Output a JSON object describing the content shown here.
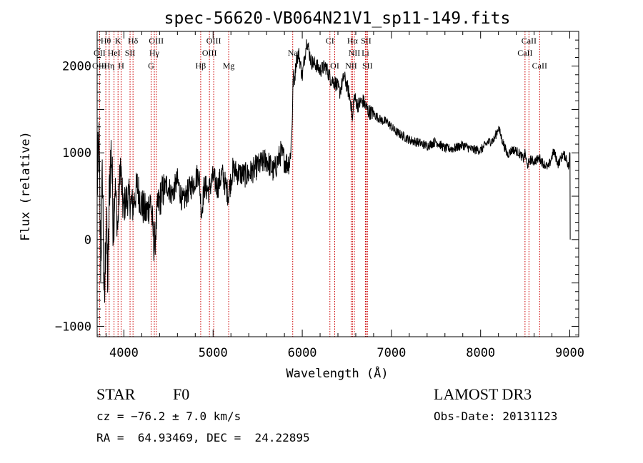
{
  "chart_data": {
    "type": "line",
    "title": "spec-56620-VB064N21V1_sp11-149.fits",
    "xlabel": "Wavelength (Å)",
    "ylabel": "Flux (relative)",
    "xlim": [
      3700,
      9100
    ],
    "ylim": [
      -1120,
      2400
    ],
    "x_ticks": [
      4000,
      5000,
      6000,
      7000,
      8000,
      9000
    ],
    "y_ticks": [
      -1000,
      0,
      1000,
      2000
    ],
    "line_color": "#000000",
    "marker_color": "#cc0000",
    "grid": false,
    "spectrum": {
      "name": "flux",
      "x": [
        3700,
        3720,
        3740,
        3760,
        3780,
        3800,
        3820,
        3840,
        3860,
        3880,
        3900,
        3930,
        3960,
        3990,
        4020,
        4050,
        4100,
        4150,
        4200,
        4250,
        4300,
        4340,
        4380,
        4420,
        4480,
        4540,
        4600,
        4660,
        4720,
        4780,
        4840,
        4870,
        4900,
        4950,
        5000,
        5050,
        5100,
        5170,
        5220,
        5300,
        5380,
        5450,
        5520,
        5600,
        5680,
        5760,
        5820,
        5860,
        5880,
        5890,
        5900,
        5915,
        5930,
        5960,
        6000,
        6050,
        6100,
        6150,
        6200,
        6260,
        6320,
        6380,
        6420,
        6470,
        6520,
        6550,
        6563,
        6580,
        6620,
        6680,
        6740,
        6800,
        6880,
        6960,
        7040,
        7120,
        7200,
        7300,
        7400,
        7500,
        7600,
        7700,
        7800,
        7900,
        8000,
        8080,
        8150,
        8200,
        8250,
        8300,
        8360,
        8420,
        8480,
        8500,
        8520,
        8560,
        8600,
        8660,
        8700,
        8760,
        8820,
        8870,
        8920,
        8960,
        8990,
        9000,
        9005
      ],
      "y": [
        600,
        1100,
        -300,
        800,
        -900,
        300,
        -500,
        700,
        1050,
        200,
        650,
        100,
        900,
        350,
        450,
        500,
        380,
        620,
        400,
        300,
        450,
        -100,
        380,
        520,
        640,
        520,
        680,
        420,
        560,
        650,
        780,
        300,
        620,
        560,
        720,
        600,
        760,
        520,
        800,
        760,
        740,
        800,
        860,
        920,
        780,
        1000,
        880,
        900,
        1180,
        1500,
        1900,
        1850,
        2050,
        2150,
        1880,
        2300,
        2050,
        2020,
        1950,
        2000,
        1850,
        1800,
        1700,
        1880,
        1700,
        1550,
        1350,
        1650,
        1550,
        1600,
        1480,
        1450,
        1380,
        1350,
        1250,
        1200,
        1150,
        1120,
        1080,
        1130,
        1050,
        1050,
        1090,
        1040,
        1030,
        1120,
        1150,
        1290,
        1120,
        980,
        1040,
        1010,
        930,
        1000,
        850,
        920,
        900,
        940,
        880,
        830,
        1020,
        870,
        980,
        950,
        820,
        1000,
        0
      ]
    },
    "line_markers": [
      {
        "label": "Hθ",
        "x": 3797,
        "row": 1
      },
      {
        "label": "K",
        "x": 3934,
        "row": 1
      },
      {
        "label": "Hδ",
        "x": 4102,
        "row": 1
      },
      {
        "label": "OIII",
        "x": 4363,
        "row": 1
      },
      {
        "label": "OIII",
        "x": 5007,
        "row": 1
      },
      {
        "label": "CI",
        "x": 6310,
        "row": 1
      },
      {
        "label": "Hα",
        "x": 6563,
        "row": 1
      },
      {
        "label": "SII",
        "x": 6716,
        "row": 1
      },
      {
        "label": "CaII",
        "x": 8542,
        "row": 1
      },
      {
        "label": "OII",
        "x": 3727,
        "row": 2
      },
      {
        "label": "HeI",
        "x": 3889,
        "row": 2
      },
      {
        "label": "SII",
        "x": 4069,
        "row": 2
      },
      {
        "label": "Hγ",
        "x": 4341,
        "row": 2
      },
      {
        "label": "OIII",
        "x": 4959,
        "row": 2
      },
      {
        "label": "Na",
        "x": 5893,
        "row": 2
      },
      {
        "label": "NII",
        "x": 6584,
        "row": 2
      },
      {
        "label": "Li",
        "x": 6708,
        "row": 2
      },
      {
        "label": "CaII",
        "x": 8498,
        "row": 2
      },
      {
        "label": "OIII",
        "x": 3727,
        "row": 3
      },
      {
        "label": "Hη",
        "x": 3835,
        "row": 3
      },
      {
        "label": "H",
        "x": 3969,
        "row": 3
      },
      {
        "label": "G",
        "x": 4305,
        "row": 3
      },
      {
        "label": "Hβ",
        "x": 4861,
        "row": 3
      },
      {
        "label": "Mg",
        "x": 5175,
        "row": 3
      },
      {
        "label": "OI",
        "x": 6364,
        "row": 3
      },
      {
        "label": "NII",
        "x": 6548,
        "row": 3
      },
      {
        "label": "SII",
        "x": 6731,
        "row": 3
      },
      {
        "label": "CaII",
        "x": 8662,
        "row": 3
      }
    ]
  },
  "info": {
    "class": "STAR",
    "subclass": "F0",
    "survey": "LAMOST DR3",
    "redshift": "cz = −76.2 ± 7.0 km/s",
    "obs_date": "Obs-Date: 20131123",
    "coordinates": "RA =  64.93469, DEC =  24.22895"
  }
}
